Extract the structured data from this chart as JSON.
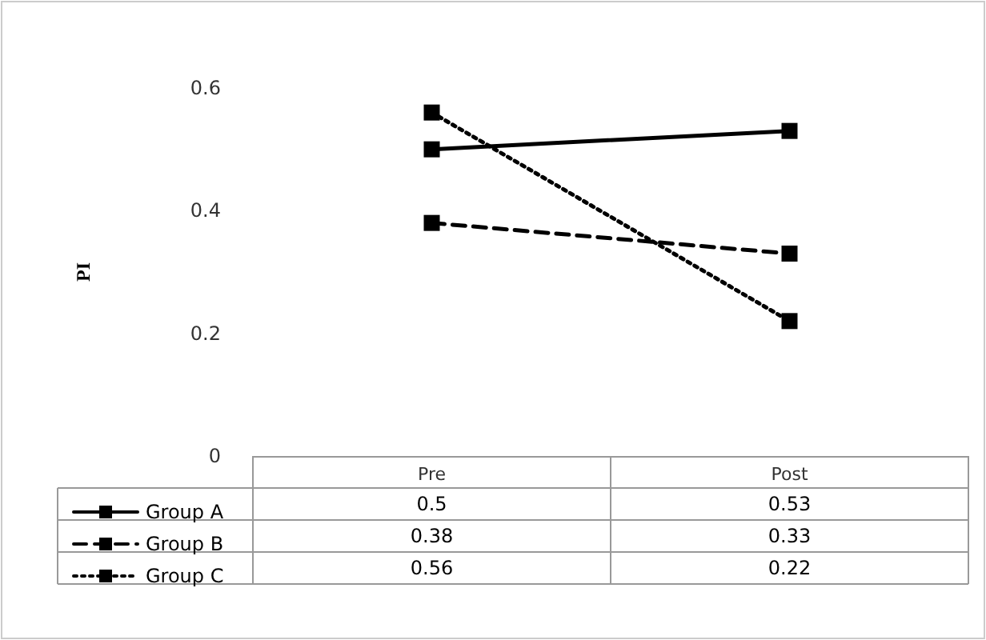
{
  "chart_data": {
    "type": "line",
    "ylabel": "PI",
    "categories": [
      "Pre",
      "Post"
    ],
    "series": [
      {
        "name": "Group A",
        "color": "#000000",
        "line_style": "solid",
        "values": [
          0.5,
          0.53
        ]
      },
      {
        "name": "Group B",
        "color": "#000000",
        "line_style": "dashed",
        "values": [
          0.38,
          0.33
        ]
      },
      {
        "name": "Group C",
        "color": "#000000",
        "line_style": "dotted",
        "values": [
          0.56,
          0.22
        ]
      }
    ],
    "ylim": [
      0,
      0.6
    ],
    "yticks": [
      0,
      0.2,
      0.4,
      0.6
    ],
    "grid": false,
    "marker": "square",
    "legend": "bottom left",
    "data_labels": true
  }
}
